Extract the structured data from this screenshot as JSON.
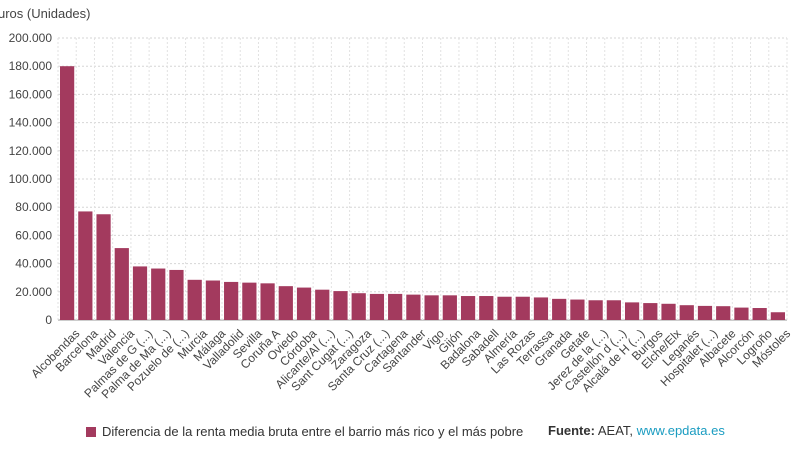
{
  "chart_data": {
    "type": "bar",
    "y_axis_title": "uros (Unidades)",
    "ylim": [
      0,
      200000
    ],
    "yticks": [
      0,
      20000,
      40000,
      60000,
      80000,
      100000,
      120000,
      140000,
      160000,
      180000,
      200000
    ],
    "ytick_labels": [
      "0",
      "20.000",
      "40.000",
      "60.000",
      "80.000",
      "100.000",
      "120.000",
      "140.000",
      "160.000",
      "180.000",
      "200.000"
    ],
    "grid": true,
    "categories": [
      "Alcobendas",
      "Barcelona",
      "Madrid",
      "Valencia",
      "Palmas de G (...)",
      "Palma de Ma (...)",
      "Pozuelo de (...)",
      "Murcia",
      "Málaga",
      "Valladolid",
      "Sevilla",
      "Coruña A",
      "Oviedo",
      "Córdoba",
      "Alicante/Al (...)",
      "Sant Cugat (...)",
      "Zaragoza",
      "Santa Cruz (...)",
      "Cartagena",
      "Santander",
      "Vigo",
      "Gijón",
      "Badalona",
      "Sabadell",
      "Almería",
      "Las Rozas",
      "Terrassa",
      "Granada",
      "Getafe",
      "Jerez de la (...)",
      "Castellón d (...)",
      "Alcalá de H (...)",
      "Burgos",
      "Elche/Elx",
      "Leganés",
      "Hospitalet (...)",
      "Albacete",
      "Alcorcón",
      "Logroño",
      "Móstoles"
    ],
    "series": [
      {
        "name": "Diferencia de la renta media bruta entre el barrio más rico y el más pobre",
        "color": "#a33a5e",
        "values": [
          180000,
          77000,
          75000,
          51000,
          38000,
          36500,
          35500,
          28500,
          28000,
          27000,
          26500,
          26000,
          24000,
          23000,
          21500,
          20500,
          19000,
          18500,
          18500,
          18000,
          17500,
          17500,
          17000,
          17000,
          16500,
          16500,
          16000,
          15000,
          14500,
          14000,
          14000,
          12500,
          12000,
          11500,
          10500,
          10000,
          9800,
          8800,
          8500,
          5500
        ]
      }
    ]
  },
  "legend": {
    "label": "Diferencia de la renta media bruta entre el barrio más rico y el más pobre",
    "color": "#a33a5e"
  },
  "source": {
    "label": "Fuente:",
    "text": "AEAT,",
    "link": "www.epdata.es"
  }
}
